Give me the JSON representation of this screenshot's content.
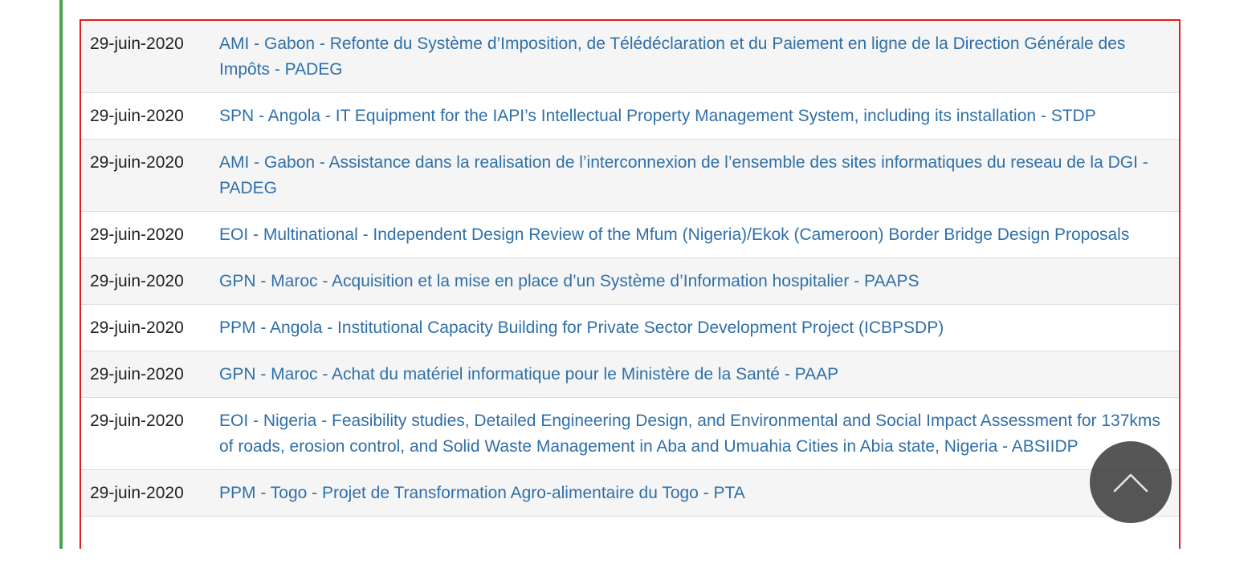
{
  "notices": [
    {
      "date": "29-juin-2020",
      "title": "AMI - Gabon - Refonte du Système d’Imposition, de Télédéclaration et du Paiement en ligne de la Direction Générale des Impôts - PADEG"
    },
    {
      "date": "29-juin-2020",
      "title": "SPN - Angola - IT Equipment for the IAPI’s Intellectual Property Management System, including its installation - STDP"
    },
    {
      "date": "29-juin-2020",
      "title": "AMI - Gabon - Assistance dans la realisation de l’interconnexion de l’ensemble des sites informatiques du reseau de la DGI - PADEG"
    },
    {
      "date": "29-juin-2020",
      "title": "EOI - Multinational - Independent Design Review of the Mfum (Nigeria)/Ekok (Cameroon) Border Bridge Design Proposals"
    },
    {
      "date": "29-juin-2020",
      "title": "GPN - Maroc - Acquisition et la mise en place d’un Système d’Information hospitalier - PAAPS"
    },
    {
      "date": "29-juin-2020",
      "title": "PPM - Angola - Institutional Capacity Building for Private Sector Development Project (ICBPSDP)"
    },
    {
      "date": "29-juin-2020",
      "title": "GPN - Maroc - Achat du matériel informatique pour le Ministère de la Santé - PAAP"
    },
    {
      "date": "29-juin-2020",
      "title": "EOI - Nigeria - Feasibility studies, Detailed Engineering Design, and Environmental and Social Impact Assessment for 137kms of roads, erosion control, and Solid Waste Management in Aba and Umuahia Cities in Abia state, Nigeria - ABSIIDP"
    },
    {
      "date": "29-juin-2020",
      "title": "PPM - Togo - Projet de Transformation Agro-alimentaire du Togo - PTA"
    }
  ],
  "scroll_top_button": {
    "icon": "chevron-up-icon"
  },
  "colors": {
    "link": "#2f6fa8",
    "date_text": "#222222",
    "frame_border": "#e01e1e",
    "left_rule": "#4aa24a",
    "row_stripe": "#f5f5f5"
  }
}
